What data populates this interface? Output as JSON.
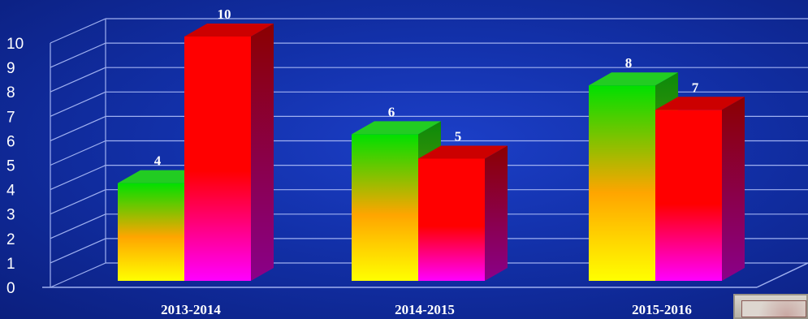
{
  "chart_data": {
    "type": "bar",
    "title": "",
    "xlabel": "",
    "ylabel": "",
    "categories": [
      "2013-2014",
      "2014-2015",
      "2015-2016"
    ],
    "series": [
      {
        "values": [
          4,
          6,
          8
        ],
        "gradient": [
          "#ffff00",
          "#ffa500",
          "#00e000"
        ],
        "side": "#0a8a0a",
        "top": "#22cc22"
      },
      {
        "values": [
          10,
          5,
          7
        ],
        "gradient": [
          "#ff00ff",
          "#ff0000",
          "#ff0000"
        ],
        "side": "#8b0000",
        "top": "#cc0000"
      }
    ],
    "data_labels": [
      [
        "4",
        "6",
        "8"
      ],
      [
        "10",
        "5",
        "7"
      ]
    ],
    "ylim": [
      0,
      10
    ],
    "yticks": [
      0,
      1,
      2,
      3,
      4,
      5,
      6,
      7,
      8,
      9,
      10
    ],
    "grid": true,
    "three_d": true,
    "legend": "none"
  },
  "colors": {
    "background": "#1230a8",
    "gridline": "#9fb0f0",
    "text": "#ffffff"
  }
}
